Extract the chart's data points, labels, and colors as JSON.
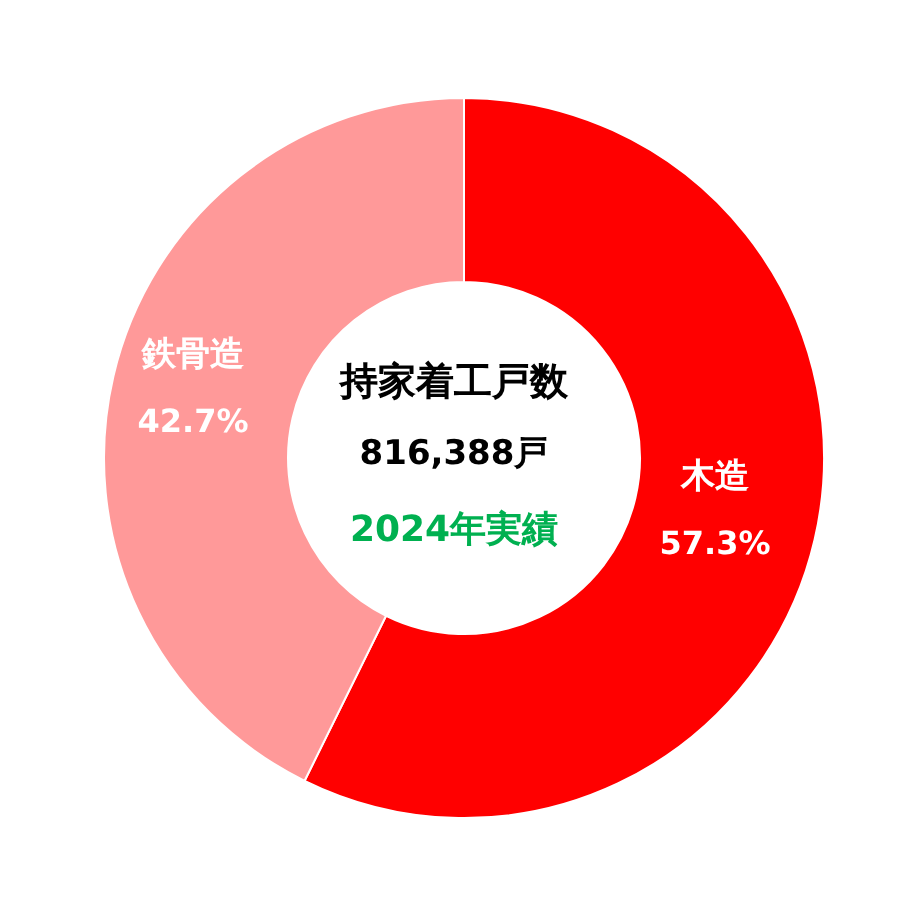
{
  "chart_data": {
    "type": "donut",
    "title": "持家着工戸数",
    "categories": [
      "木造",
      "鉄骨造"
    ],
    "values": [
      57.3,
      42.7
    ],
    "colors": [
      "#ff0000",
      "#ff9999"
    ],
    "value_labels": [
      "57.3%",
      "42.7%"
    ],
    "annotations": [
      "816,388戸",
      "2024年実績"
    ]
  }
}
